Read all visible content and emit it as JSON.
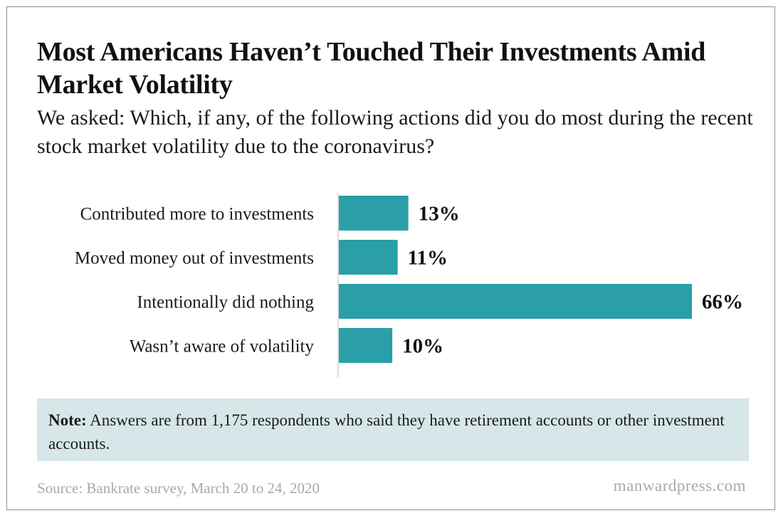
{
  "title": "Most Americans Haven’t Touched Their Investments Amid Market Volatility",
  "subtitle": "We asked: Which, if any, of the following actions did you do most during the recent stock market volatility due to the coronavirus?",
  "note": {
    "label": "Note:",
    "text": " Answers are from 1,175 respondents who said they have retirement accounts or other investment accounts."
  },
  "source": "Source: Bankrate survey, March 20 to 24, 2020",
  "credit": "manwardpress.com",
  "colors": {
    "bar": "#2a9fa8",
    "note_background": "#d7e6e9",
    "footer_text": "#a9a9a9"
  },
  "chart_data": {
    "type": "bar",
    "orientation": "horizontal",
    "categories": [
      "Contributed more to investments",
      "Moved money out of investments",
      "Intentionally did nothing",
      "Wasn’t aware of volatility"
    ],
    "values": [
      13,
      11,
      66,
      10
    ],
    "value_labels": [
      "13%",
      "11%",
      "66%",
      "10%"
    ],
    "unit": "%",
    "xlim": [
      0,
      66
    ],
    "grid": false,
    "legend": "none"
  }
}
